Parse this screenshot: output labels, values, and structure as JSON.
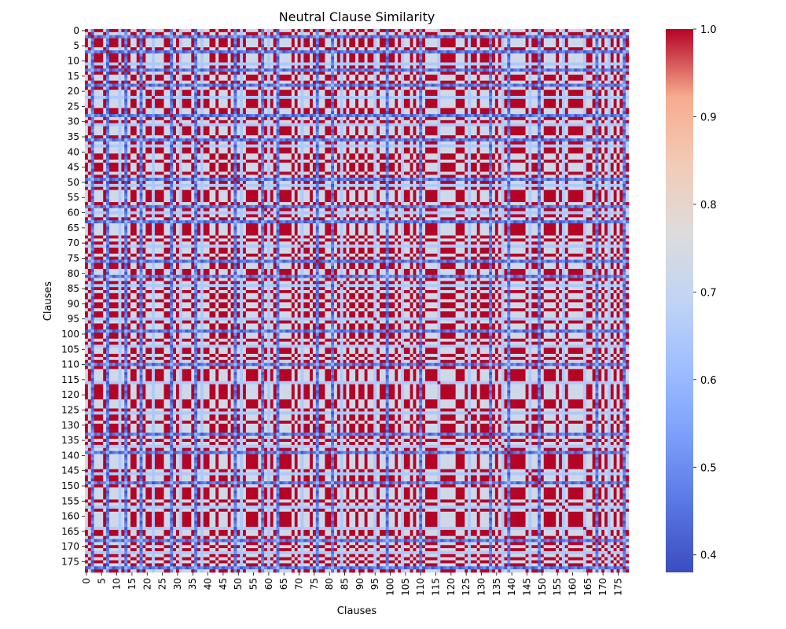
{
  "chart_data": {
    "type": "heatmap",
    "title": "Neutral Clause Similarity",
    "xlabel": "Clauses",
    "ylabel": "Clauses",
    "n_rows": 179,
    "n_cols": 179,
    "x_tick_labels": [
      "0",
      "5",
      "10",
      "15",
      "20",
      "25",
      "30",
      "35",
      "40",
      "45",
      "50",
      "55",
      "60",
      "65",
      "70",
      "75",
      "80",
      "85",
      "90",
      "95",
      "100",
      "105",
      "110",
      "115",
      "120",
      "125",
      "130",
      "135",
      "140",
      "145",
      "150",
      "155",
      "160",
      "165",
      "170",
      "175"
    ],
    "y_tick_labels": [
      "0",
      "5",
      "10",
      "15",
      "20",
      "25",
      "30",
      "35",
      "40",
      "45",
      "50",
      "55",
      "60",
      "65",
      "70",
      "75",
      "80",
      "85",
      "90",
      "95",
      "100",
      "105",
      "110",
      "115",
      "120",
      "125",
      "130",
      "135",
      "140",
      "145",
      "150",
      "155",
      "160",
      "165",
      "170",
      "175"
    ],
    "tick_step": 5,
    "value_range": [
      0.38,
      1.0
    ],
    "colormap": "coolwarm",
    "colorbar_ticks": [
      "0.4",
      "0.5",
      "0.6",
      "0.7",
      "0.8",
      "0.9",
      "1.0"
    ],
    "colorbar_tick_values": [
      0.4,
      0.5,
      0.6,
      0.7,
      0.8,
      0.9,
      1.0
    ],
    "levels": [
      0.4,
      0.6,
      0.7,
      1.0
    ],
    "low_rows": [
      2,
      7,
      13,
      18,
      28,
      36,
      49,
      58,
      63,
      76,
      81,
      99,
      110,
      133,
      139,
      149,
      168,
      177
    ],
    "mid_rows": [
      11,
      22,
      31,
      38,
      51,
      60,
      71,
      84,
      95,
      104,
      116,
      126,
      137,
      146,
      157,
      164,
      172
    ],
    "grid": false,
    "legend": "colorbar-right",
    "note_values": "cell values not legible at this resolution; approximate structure shown"
  }
}
